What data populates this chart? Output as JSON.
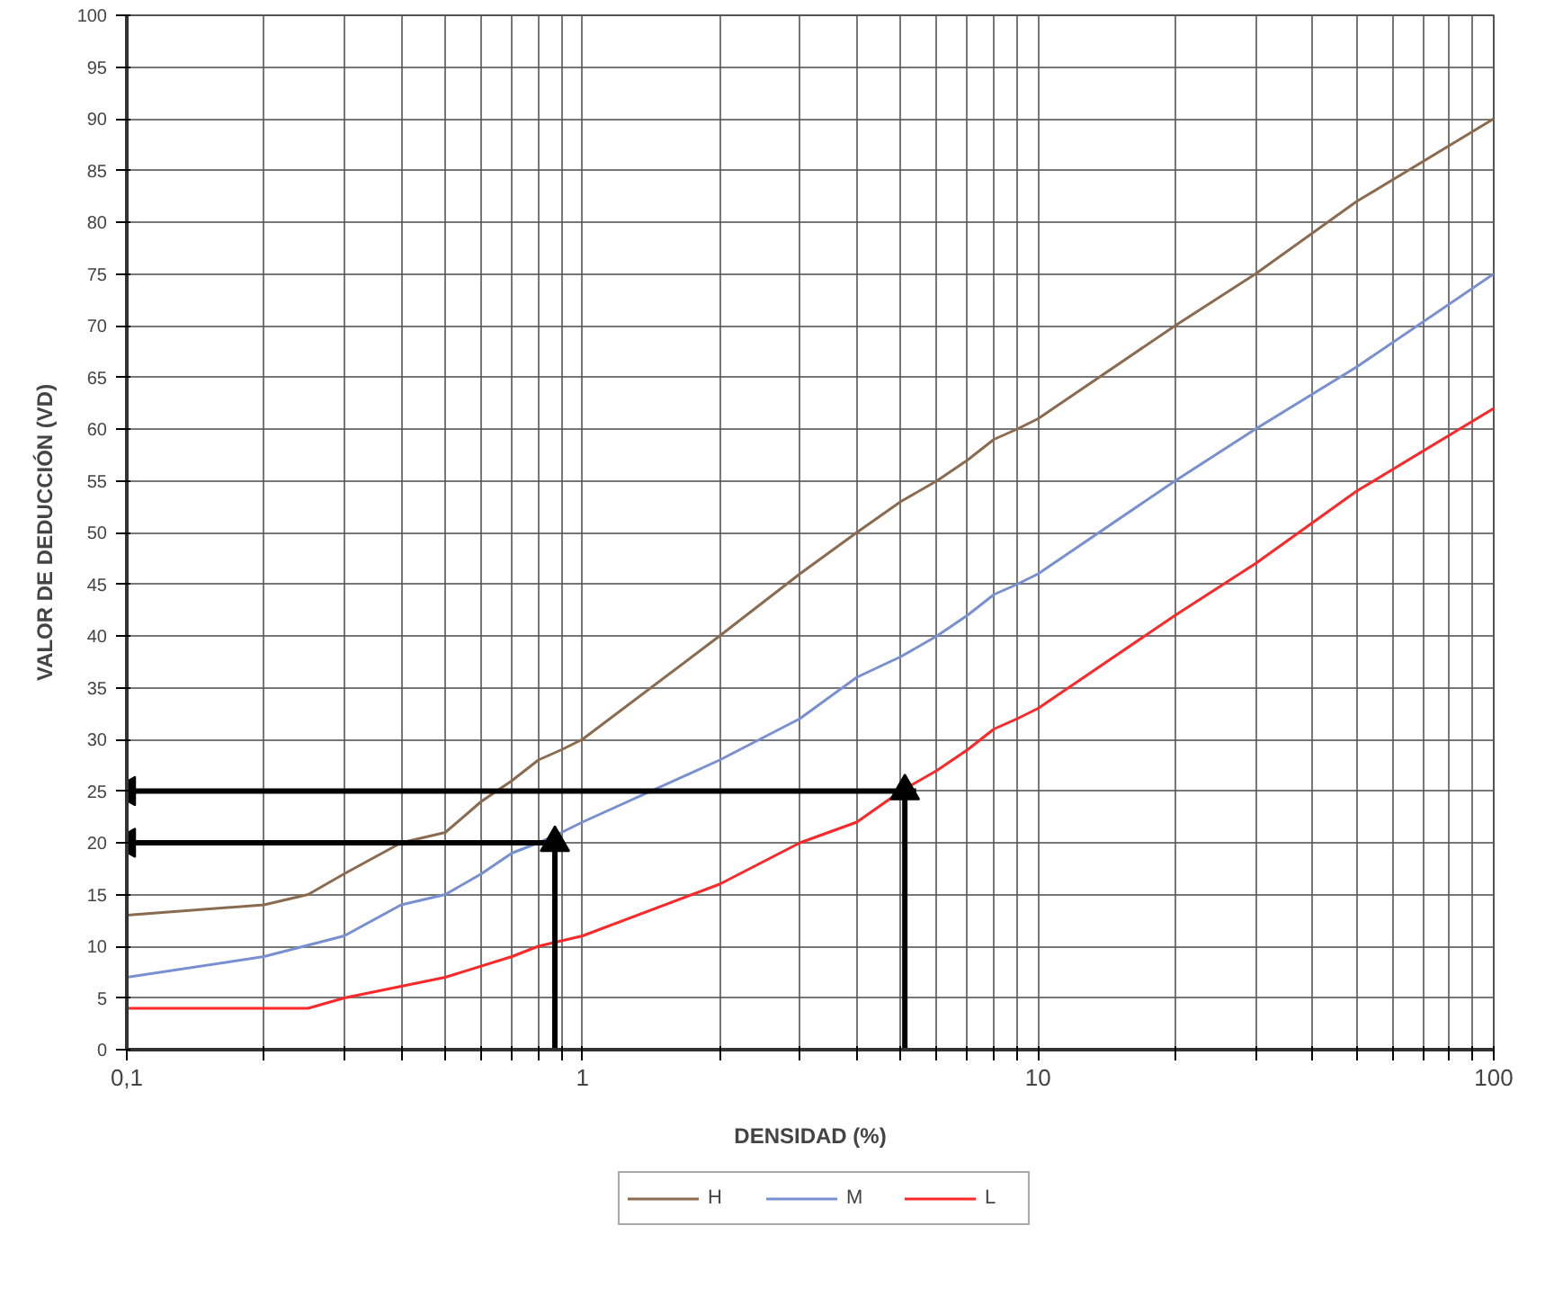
{
  "chart_data": {
    "type": "line",
    "xlabel": "DENSIDAD (%)",
    "ylabel": "VALOR DE DEDUCCIÓN (VD)",
    "log": "x",
    "xlim": [
      0.1,
      100
    ],
    "ylim": [
      0,
      100
    ],
    "xticks": [
      {
        "value": 0.1,
        "label": "0,1"
      },
      {
        "value": 0.2,
        "label": null
      },
      {
        "value": 0.3,
        "label": null
      },
      {
        "value": 0.4,
        "label": null
      },
      {
        "value": 0.5,
        "label": null
      },
      {
        "value": 0.6,
        "label": null
      },
      {
        "value": 0.7,
        "label": null
      },
      {
        "value": 0.8,
        "label": null
      },
      {
        "value": 0.9,
        "label": null
      },
      1,
      {
        "value": 2,
        "label": null
      },
      {
        "value": 3,
        "label": null
      },
      {
        "value": 4,
        "label": null
      },
      {
        "value": 5,
        "label": null
      },
      {
        "value": 6,
        "label": null
      },
      {
        "value": 7,
        "label": null
      },
      {
        "value": 8,
        "label": null
      },
      {
        "value": 9,
        "label": null
      },
      10,
      {
        "value": 20,
        "label": null
      },
      {
        "value": 30,
        "label": null
      },
      {
        "value": 40,
        "label": null
      },
      {
        "value": 50,
        "label": null
      },
      {
        "value": 60,
        "label": null
      },
      {
        "value": 70,
        "label": null
      },
      {
        "value": 80,
        "label": null
      },
      {
        "value": 90,
        "label": null
      },
      100
    ],
    "yticks": [
      0,
      5,
      10,
      15,
      20,
      25,
      30,
      35,
      40,
      45,
      50,
      55,
      60,
      65,
      70,
      75,
      80,
      85,
      90,
      95,
      100
    ],
    "grid": true,
    "legend": "bottom",
    "marker": "none",
    "line_style": "solid",
    "series": [
      {
        "name": "H",
        "color": "#8b6b4f",
        "x": [
          0.1,
          0.2,
          0.25,
          0.3,
          0.4,
          0.5,
          0.6,
          0.7,
          0.8,
          0.9,
          1,
          2,
          3,
          4,
          5,
          6,
          7,
          8,
          9,
          10,
          20,
          30,
          50,
          100
        ],
        "values": [
          13,
          14,
          15,
          17,
          20,
          21,
          24,
          26,
          28,
          29,
          30,
          40,
          46,
          50,
          53,
          55,
          57,
          59,
          60,
          61,
          70,
          75,
          82,
          90
        ]
      },
      {
        "name": "M",
        "color": "#7890d0",
        "x": [
          0.1,
          0.2,
          0.3,
          0.4,
          0.5,
          0.6,
          0.7,
          0.8,
          0.9,
          1,
          2,
          3,
          4,
          5,
          6,
          7,
          8,
          9,
          10,
          20,
          30,
          50,
          100
        ],
        "values": [
          7,
          9,
          11,
          14,
          15,
          17,
          19,
          20,
          21,
          22,
          28,
          32,
          36,
          38,
          40,
          42,
          44,
          45,
          46,
          55,
          60,
          66,
          75
        ]
      },
      {
        "name": "L",
        "color": "#ff2828",
        "x": [
          0.1,
          0.2,
          0.25,
          0.3,
          0.5,
          0.7,
          0.8,
          1,
          2,
          3,
          4,
          5,
          6,
          7,
          8,
          9,
          10,
          20,
          30,
          50,
          100
        ],
        "values": [
          4,
          4,
          4,
          5,
          7,
          9,
          10,
          11,
          16,
          20,
          22,
          25,
          27,
          29,
          31,
          32,
          33,
          42,
          47,
          54,
          62
        ]
      },
      {
        "color": "#000000",
        "marker": "triangle",
        "x": [
          0.87,
          0.87
        ],
        "values": [
          0,
          20
        ]
      },
      {
        "color": "#000000",
        "marker": "triangle",
        "x": [
          0.9,
          0.1
        ],
        "values": [
          20,
          20
        ]
      },
      {
        "color": "#000000",
        "marker": "triangle",
        "x": [
          5.1,
          5.1
        ],
        "values": [
          0,
          25
        ]
      },
      {
        "color": "#000000",
        "marker": "triangle",
        "x": [
          5.4,
          0.1
        ],
        "values": [
          25,
          25
        ]
      }
    ]
  }
}
